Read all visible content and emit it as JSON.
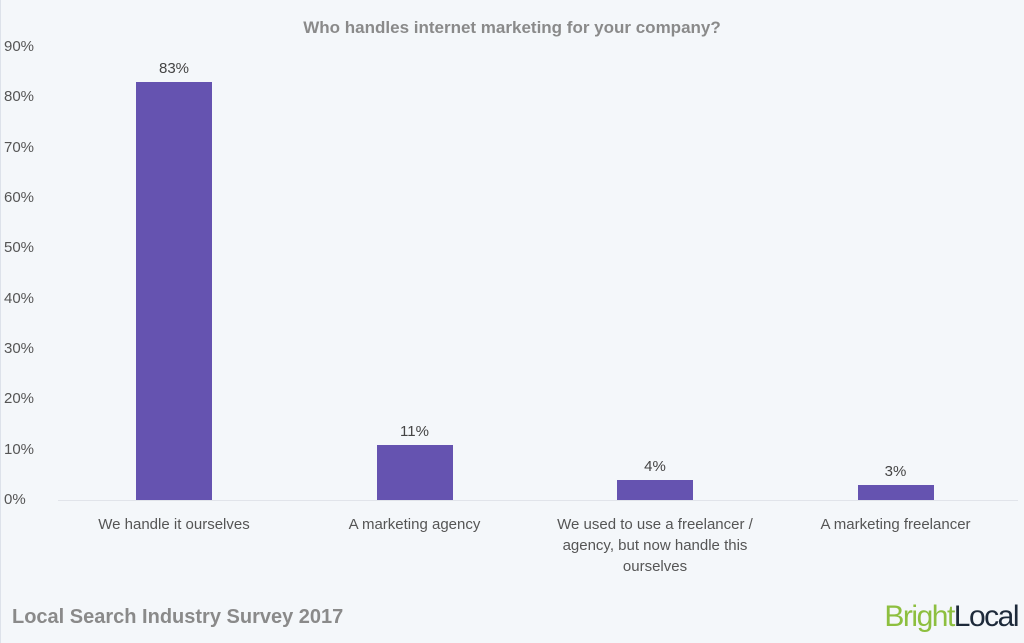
{
  "chart_data": {
    "type": "bar",
    "title": "Who handles internet marketing for your company?",
    "xlabel": "",
    "ylabel": "",
    "ylim": [
      0,
      90
    ],
    "yticks": [
      "0%",
      "10%",
      "20%",
      "30%",
      "40%",
      "50%",
      "60%",
      "70%",
      "80%",
      "90%"
    ],
    "grid": false,
    "legend": null,
    "categories": [
      "We handle it ourselves",
      "A marketing agency",
      "We used to use a freelancer / agency, but now handle this ourselves",
      "A marketing freelancer"
    ],
    "values": [
      83,
      11,
      4,
      3
    ],
    "value_labels": [
      "83%",
      "11%",
      "4%",
      "3%"
    ],
    "bar_color": "#6553b0"
  },
  "footer": {
    "source": "Local Search Industry Survey 2017",
    "brand_part1": "Bright",
    "brand_part2": "Local"
  }
}
